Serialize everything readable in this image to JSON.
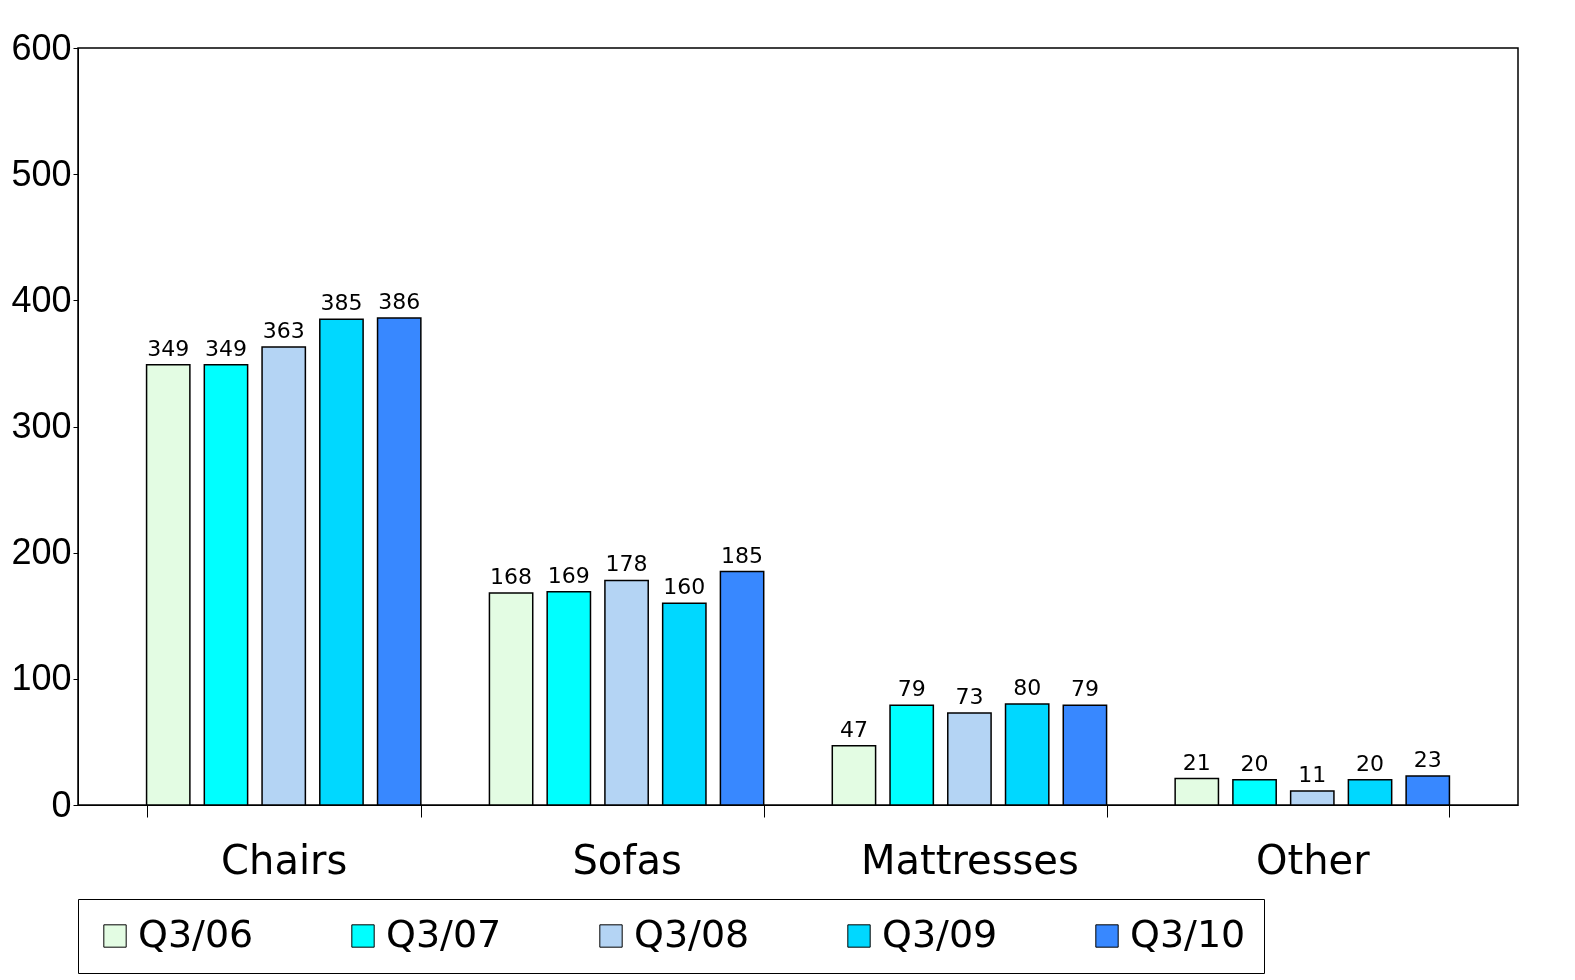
{
  "chart_data": {
    "type": "bar",
    "categories": [
      "Chairs",
      "Sofas",
      "Mattresses",
      "Other"
    ],
    "series": [
      {
        "name": "Q3/06",
        "color": "#e3fce3",
        "values": [
          349,
          168,
          47,
          21
        ]
      },
      {
        "name": "Q3/07",
        "color": "#00ffff",
        "values": [
          349,
          169,
          79,
          20
        ]
      },
      {
        "name": "Q3/08",
        "color": "#b4d4f4",
        "values": [
          363,
          178,
          73,
          11
        ]
      },
      {
        "name": "Q3/09",
        "color": "#00d8ff",
        "values": [
          385,
          160,
          80,
          20
        ]
      },
      {
        "name": "Q3/10",
        "color": "#3888ff",
        "values": [
          386,
          185,
          79,
          23
        ]
      }
    ],
    "ylim": [
      0,
      600
    ],
    "yticks": [
      0,
      100,
      200,
      300,
      400,
      500,
      600
    ],
    "data_labels": true,
    "grid": false,
    "legend": "bottom"
  }
}
